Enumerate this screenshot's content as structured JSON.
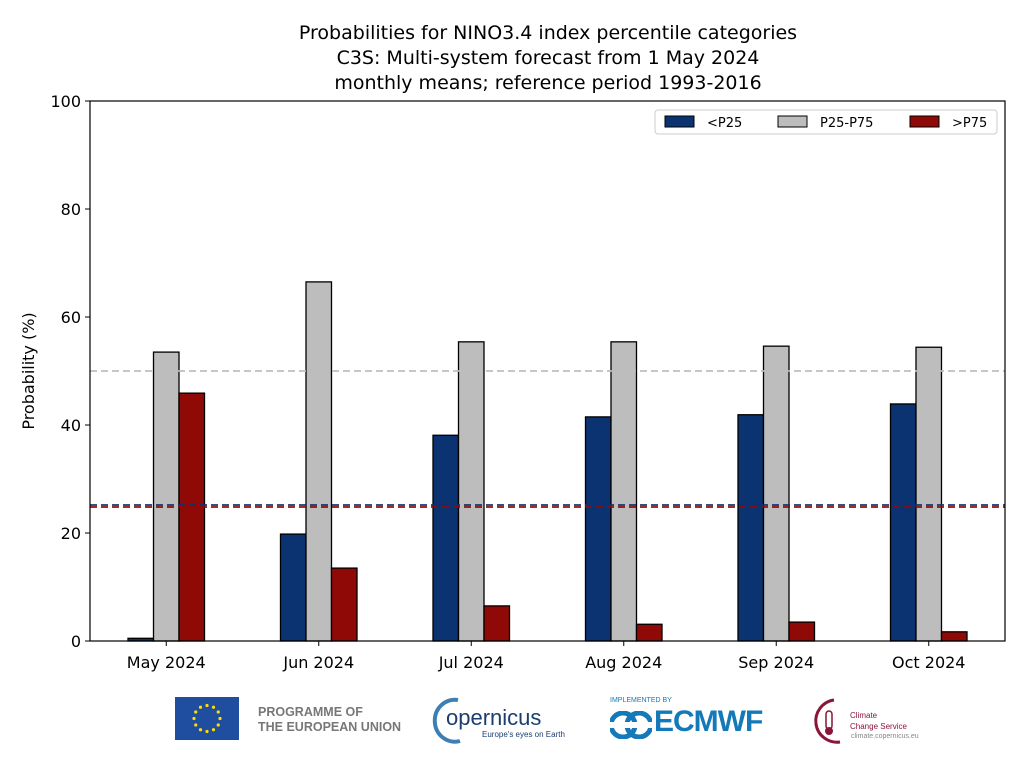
{
  "chart_data": {
    "type": "bar",
    "title": [
      "Probabilities for NINO3.4 index percentile categories",
      "C3S: Multi-system forecast from 1 May 2024",
      "monthly means; reference period 1993-2016"
    ],
    "xlabel": "",
    "ylabel": "Probability (%)",
    "ylim": [
      0,
      100
    ],
    "yticks": [
      "0",
      "20",
      "40",
      "60",
      "80",
      "100"
    ],
    "grid": false,
    "legend_placement": "top-right",
    "categories": [
      "May 2024",
      "Jun 2024",
      "Jul 2024",
      "Aug 2024",
      "Sep 2024",
      "Oct 2024"
    ],
    "series": [
      {
        "name": "<P25",
        "color": "#0b3372",
        "values": [
          0.5,
          19.8,
          38.1,
          41.5,
          41.9,
          43.9
        ]
      },
      {
        "name": "P25-P75",
        "color": "#bdbdbd",
        "values": [
          53.5,
          66.5,
          55.4,
          55.4,
          54.6,
          54.4
        ]
      },
      {
        "name": ">P75",
        "color": "#8f0a06",
        "values": [
          45.9,
          13.5,
          6.5,
          3.1,
          3.5,
          1.7
        ]
      }
    ],
    "reference_lines": [
      {
        "value": 50,
        "color": "#bdbdbd",
        "style": "dashed"
      },
      {
        "value": 25,
        "color": "#0b3372",
        "style": "dashed"
      },
      {
        "value": 25,
        "color": "#8f0a06",
        "style": "dashed"
      }
    ]
  },
  "logos": {
    "eu": "PROGRAMME OF THE EUROPEAN UNION",
    "eu_lines": [
      "PROGRAMME OF",
      "THE EUROPEAN UNION"
    ],
    "copernicus": "opernicus",
    "copernicus_tagline": "Europe's eyes on Earth",
    "ecmwf_label": "IMPLEMENTED BY",
    "ecmwf": "ECMWF",
    "c3s_lines": [
      "Climate",
      "Change Service"
    ],
    "c3s_url": "climate.copernicus.eu"
  }
}
